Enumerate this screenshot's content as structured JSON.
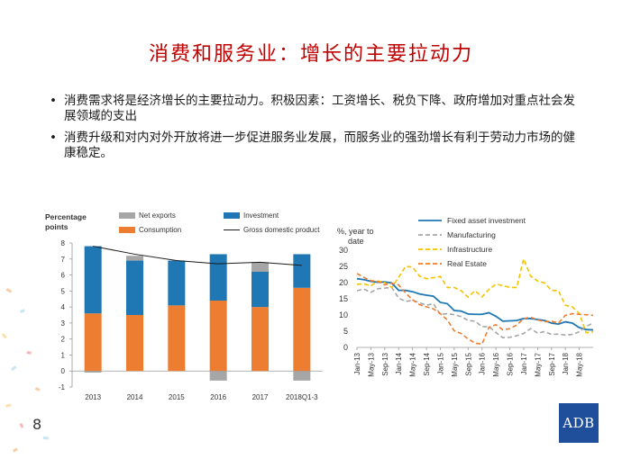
{
  "slide": {
    "title": "消费和服务业：增长的主要拉动力",
    "bullets": [
      "消费需求将是经济增长的主要拉动力。积极因素：工资增长、税负下降、政府增加对重点社会发展领域的支出",
      "消费升级和对内对外开放将进一步促进服务业发展，而服务业的强劲增长有利于劳动力市场的健康稳定。"
    ],
    "page_number": "8",
    "logo_text": "ADB"
  },
  "chart_data": [
    {
      "type": "bar",
      "stacked": true,
      "ylabel": "Percentage points",
      "categories": [
        "2013",
        "2014",
        "2015",
        "2016",
        "2017",
        "2018Q1-3"
      ],
      "ylim": [
        -1,
        8
      ],
      "yticks": [
        -1,
        0,
        1,
        2,
        3,
        4,
        5,
        6,
        7,
        8
      ],
      "legend_position": "top",
      "series": [
        {
          "name": "Net exports",
          "kind": "bar",
          "color": "#a6a6a6",
          "values": [
            -0.1,
            0.3,
            0.0,
            -0.6,
            0.6,
            -0.6
          ]
        },
        {
          "name": "Consumption",
          "kind": "bar",
          "color": "#ed7d31",
          "values": [
            3.6,
            3.5,
            4.1,
            4.4,
            4.0,
            5.2
          ]
        },
        {
          "name": "Investment",
          "kind": "bar",
          "color": "#1f77b4",
          "values": [
            4.2,
            3.4,
            2.8,
            2.9,
            2.2,
            2.1
          ]
        },
        {
          "name": "Gross domestic product",
          "kind": "line",
          "color": "#1a1a1a",
          "values": [
            7.8,
            7.3,
            6.9,
            6.7,
            6.8,
            6.6
          ]
        }
      ]
    },
    {
      "type": "line",
      "ylabel": "%, year to date",
      "ylim": [
        0,
        30
      ],
      "yticks": [
        0,
        5,
        10,
        15,
        20,
        25,
        30
      ],
      "x_tick_labels": [
        "Jan-13",
        "May-13",
        "Sep-13",
        "Jan-14",
        "May-14",
        "Sep-14",
        "Jan-15",
        "May-15",
        "Sep-15",
        "Jan-16",
        "May-16",
        "Sep-16",
        "Jan-17",
        "May-17",
        "Sep-17",
        "Jan-18",
        "May-18"
      ],
      "x_months": [
        "Jan-13",
        "Mar-13",
        "May-13",
        "Jul-13",
        "Sep-13",
        "Nov-13",
        "Jan-14",
        "Mar-14",
        "May-14",
        "Jul-14",
        "Sep-14",
        "Nov-14",
        "Jan-15",
        "Mar-15",
        "May-15",
        "Jul-15",
        "Sep-15",
        "Nov-15",
        "Jan-16",
        "Mar-16",
        "May-16",
        "Jul-16",
        "Sep-16",
        "Nov-16",
        "Jan-17",
        "Mar-17",
        "May-17",
        "Jul-17",
        "Sep-17",
        "Nov-17",
        "Jan-18",
        "Mar-18",
        "May-18",
        "Jul-18",
        "Sep-18"
      ],
      "legend_position": "top",
      "series": [
        {
          "name": "Fixed asset investment",
          "color": "#1f77b4",
          "dash": "solid",
          "values": [
            21.2,
            20.9,
            20.4,
            20.1,
            20.2,
            19.9,
            17.6,
            17.6,
            17.2,
            16.5,
            16.1,
            15.8,
            13.9,
            13.5,
            11.4,
            11.2,
            10.3,
            10.2,
            10.2,
            10.7,
            9.6,
            8.1,
            8.2,
            8.3,
            8.9,
            8.9,
            8.6,
            8.3,
            7.5,
            7.2,
            7.9,
            7.5,
            6.1,
            5.5,
            5.4
          ]
        },
        {
          "name": "Manufacturing",
          "color": "#a6a6a6",
          "dash": "dash",
          "values": [
            17.5,
            18.0,
            17.0,
            18.1,
            18.3,
            18.5,
            15.2,
            14.2,
            14.5,
            13.8,
            13.0,
            13.5,
            10.2,
            10.4,
            10.1,
            9.5,
            8.3,
            8.1,
            6.4,
            6.4,
            4.6,
            3.0,
            3.1,
            3.6,
            4.3,
            5.8,
            4.4,
            4.9,
            4.0,
            4.1,
            3.8,
            4.0,
            4.8,
            6.5,
            7.5
          ]
        },
        {
          "name": "Infrastructure",
          "color": "#f2c300",
          "dash": "dash",
          "values": [
            19.5,
            19.6,
            19.0,
            20.5,
            20.0,
            18.5,
            21.6,
            25.0,
            24.8,
            22.0,
            21.2,
            21.5,
            21.9,
            18.5,
            18.5,
            17.5,
            15.5,
            17.5,
            15.6,
            17.9,
            19.5,
            19.1,
            18.5,
            18.5,
            27.3,
            22.0,
            20.5,
            19.9,
            17.6,
            17.5,
            13.0,
            12.5,
            10.5,
            4.5,
            4.8
          ]
        },
        {
          "name": "Real Estate",
          "color": "#ed7d31",
          "dash": "dash",
          "values": [
            22.8,
            21.6,
            20.6,
            20.3,
            19.3,
            19.8,
            19.3,
            16.8,
            14.7,
            13.2,
            12.5,
            11.9,
            10.4,
            8.5,
            5.1,
            4.3,
            2.6,
            1.3,
            1.0,
            6.2,
            7.0,
            5.4,
            5.8,
            6.9,
            8.9,
            9.3,
            8.5,
            7.9,
            8.1,
            7.5,
            9.9,
            10.4,
            10.2,
            10.1,
            9.9
          ]
        }
      ]
    }
  ]
}
